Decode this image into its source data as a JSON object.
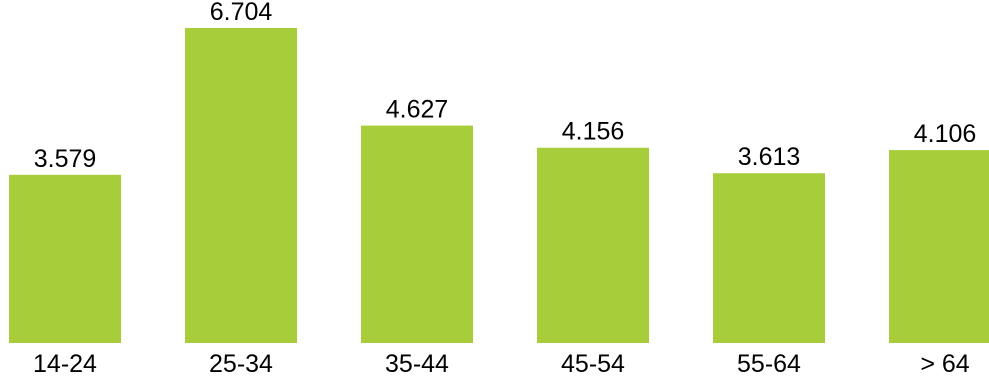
{
  "chart_data": {
    "type": "bar",
    "title": "",
    "xlabel": "",
    "ylabel": "",
    "categories": [
      "14-24",
      "25-34",
      "35-44",
      "45-54",
      "55-64",
      "> 64"
    ],
    "values": [
      3.579,
      6.704,
      4.627,
      4.156,
      3.613,
      4.106
    ],
    "value_labels": [
      "3.579",
      "6.704",
      "4.627",
      "4.156",
      "3.613",
      "4.106"
    ],
    "ylim": [
      0,
      7.3
    ],
    "grid": false,
    "legend": "none",
    "colors": {
      "bar": "#a7ce3a",
      "text": "#000000",
      "background": "#ffffff"
    }
  }
}
